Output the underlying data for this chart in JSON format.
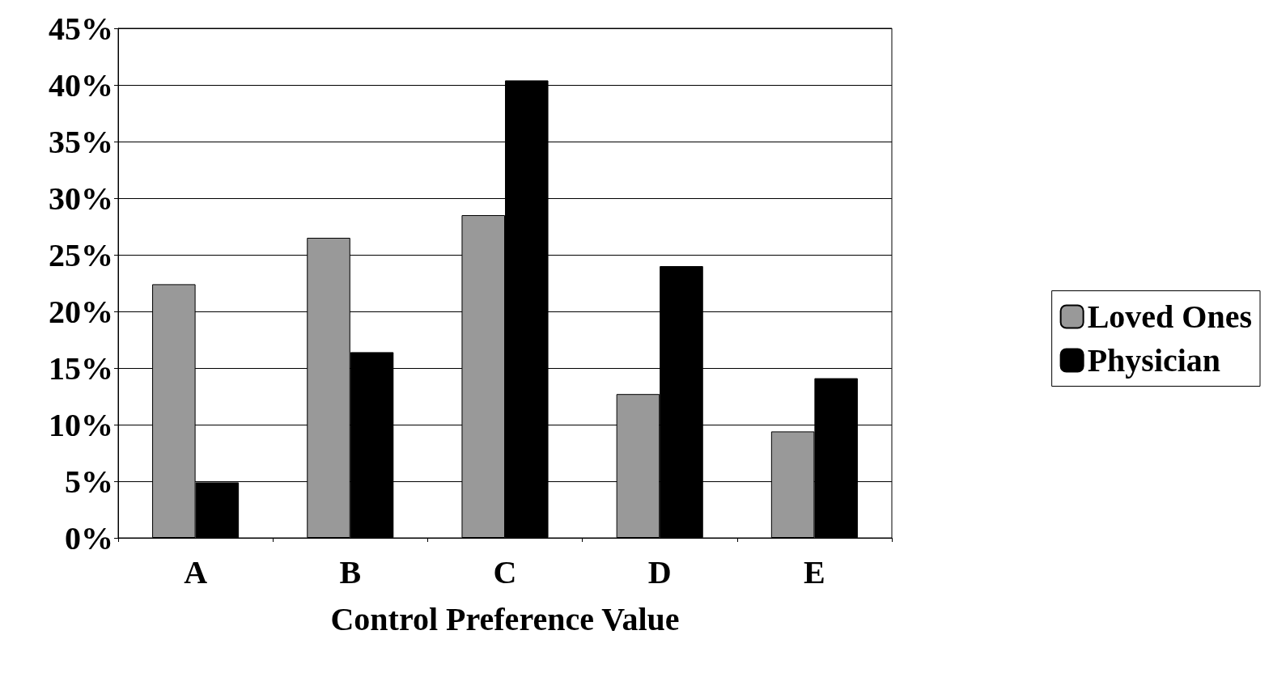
{
  "chart_data": {
    "type": "bar",
    "xlabel": "Control Preference Value",
    "categories": [
      "A",
      "B",
      "C",
      "D",
      "E"
    ],
    "series": [
      {
        "name": "Loved Ones",
        "color": "#999999",
        "values": [
          22.4,
          26.5,
          28.5,
          12.7,
          9.4
        ]
      },
      {
        "name": "Physician",
        "color": "#000000",
        "values": [
          4.9,
          16.4,
          40.4,
          24.0,
          14.1
        ]
      }
    ],
    "ylim": [
      0,
      45
    ],
    "yticks": [
      {
        "value": 0,
        "label": "0%"
      },
      {
        "value": 5,
        "label": "5%"
      },
      {
        "value": 10,
        "label": "10%"
      },
      {
        "value": 15,
        "label": "15%"
      },
      {
        "value": 20,
        "label": "20%"
      },
      {
        "value": 25,
        "label": "25%"
      },
      {
        "value": 30,
        "label": "30%"
      },
      {
        "value": 35,
        "label": "35%"
      },
      {
        "value": 40,
        "label": "40%"
      },
      {
        "value": 45,
        "label": "45%"
      }
    ],
    "grid": "y",
    "legend": "right"
  }
}
